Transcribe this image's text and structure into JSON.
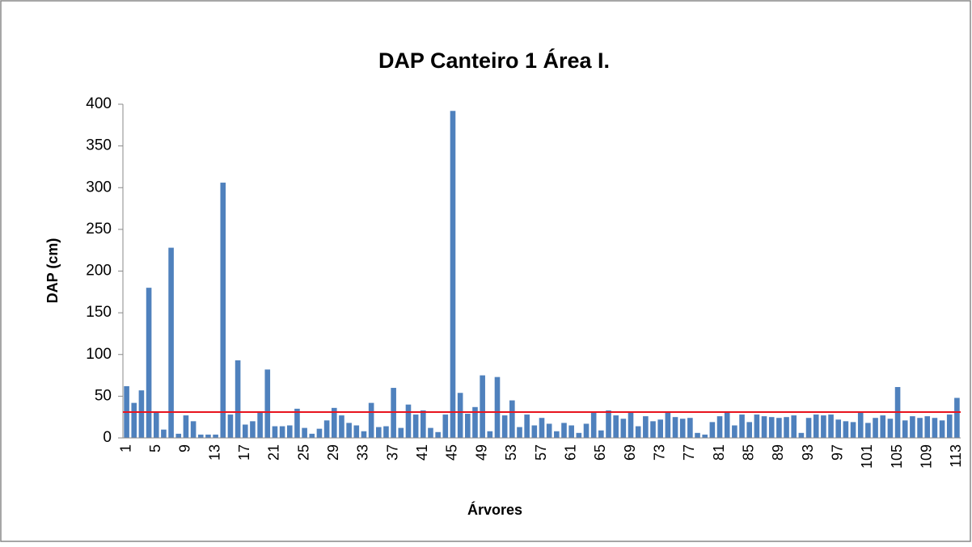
{
  "chart_data": {
    "type": "bar",
    "title": "DAP Canteiro 1 Área I.",
    "xlabel": "Árvores",
    "ylabel": "DAP (cm)",
    "categories": [
      1,
      null,
      null,
      null,
      5,
      null,
      null,
      null,
      9,
      null,
      null,
      null,
      13,
      null,
      null,
      null,
      17,
      null,
      null,
      null,
      21,
      null,
      null,
      null,
      25,
      null,
      null,
      null,
      29,
      null,
      null,
      null,
      33,
      null,
      null,
      null,
      37,
      null,
      null,
      null,
      41,
      null,
      null,
      null,
      45,
      null,
      null,
      null,
      49,
      null,
      null,
      null,
      53,
      null,
      null,
      null,
      57,
      null,
      null,
      null,
      61,
      null,
      null,
      null,
      65,
      null,
      null,
      null,
      69,
      null,
      null,
      null,
      73,
      null,
      null,
      null,
      77,
      null,
      null,
      null,
      81,
      null,
      null,
      null,
      85,
      null,
      null,
      null,
      89,
      null,
      null,
      null,
      93,
      null,
      null,
      null,
      97,
      null,
      null,
      null,
      101,
      null,
      null,
      null,
      105,
      null,
      null,
      null,
      109,
      null,
      null,
      null,
      113
    ],
    "values": [
      62,
      42,
      57,
      180,
      32,
      10,
      228,
      5,
      27,
      20,
      4,
      4,
      4,
      306,
      28,
      93,
      16,
      20,
      32,
      82,
      14,
      14,
      15,
      35,
      12,
      5,
      11,
      21,
      36,
      27,
      18,
      15,
      8,
      42,
      13,
      14,
      60,
      12,
      40,
      28,
      33,
      12,
      7,
      28,
      392,
      54,
      29,
      37,
      75,
      8,
      73,
      27,
      45,
      13,
      28,
      15,
      24,
      17,
      8,
      18,
      15,
      6,
      17,
      30,
      9,
      33,
      27,
      23,
      31,
      14,
      26,
      20,
      22,
      32,
      25,
      23,
      24,
      6,
      4,
      19,
      26,
      32,
      15,
      28,
      19,
      28,
      26,
      25,
      24,
      25,
      27,
      6,
      24,
      28,
      27,
      28,
      22,
      20,
      19,
      31,
      18,
      24,
      27,
      23,
      61,
      21,
      26,
      24,
      26,
      24,
      21,
      28,
      48
    ],
    "color": "#4f81bd",
    "ylim": [
      0,
      400
    ],
    "yticks": [
      0,
      50,
      100,
      150,
      200,
      250,
      300,
      350,
      400
    ],
    "grid": false,
    "reference_line": {
      "value": 31,
      "color": "#e8141e"
    }
  }
}
